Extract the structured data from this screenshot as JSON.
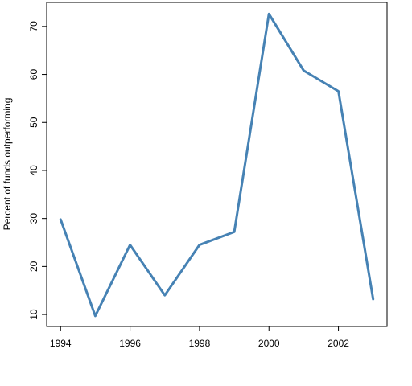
{
  "chart_data": {
    "type": "line",
    "title": "",
    "xlabel": "",
    "ylabel": "Percent of funds outperforming",
    "x": [
      1994,
      1995,
      1996,
      1997,
      1998,
      1999,
      2000,
      2001,
      2002,
      2003
    ],
    "series": [
      {
        "values": [
          29.8,
          9.7,
          24.5,
          14.0,
          24.5,
          27.2,
          72.6,
          60.8,
          56.5,
          13.2
        ],
        "color": "#4682b4"
      }
    ],
    "xlim": [
      1993.6,
      2003.4
    ],
    "ylim": [
      7.5,
      75
    ],
    "xticks": [
      1994,
      1996,
      1998,
      2000,
      2002
    ],
    "yticks": [
      10,
      20,
      30,
      40,
      50,
      60,
      70
    ],
    "grid": false,
    "legend": "none"
  }
}
